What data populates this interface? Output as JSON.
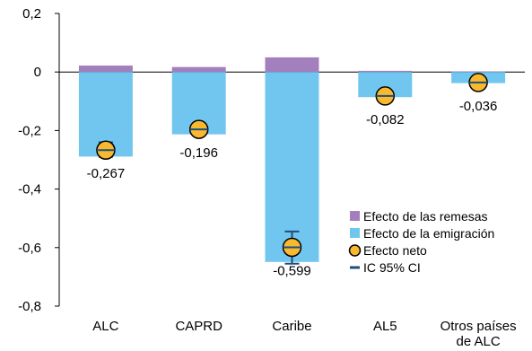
{
  "chart_data": {
    "type": "bar",
    "categories": [
      "ALC",
      "CAPRD",
      "Caribe",
      "AL5",
      "Otros países de ALC"
    ],
    "category_label_lines": [
      [
        "ALC"
      ],
      [
        "CAPRD"
      ],
      [
        "Caribe"
      ],
      [
        "AL5"
      ],
      [
        "Otros países",
        "de ALC"
      ]
    ],
    "series": [
      {
        "name": "Efecto de las remesas",
        "values": [
          0.022,
          0.017,
          0.05,
          0.004,
          0.002
        ],
        "color": "#a47fbd"
      },
      {
        "name": "Efecto de la emigración",
        "values": [
          -0.289,
          -0.213,
          -0.649,
          -0.086,
          -0.038
        ],
        "color": "#71c6f0"
      }
    ],
    "net_effect": {
      "name": "Efecto neto",
      "values": [
        -0.267,
        -0.196,
        -0.599,
        -0.082,
        -0.036
      ],
      "labels": [
        "-0,267",
        "-0,196",
        "-0,599",
        "-0,082",
        "-0,036"
      ],
      "color": "#f8b830"
    },
    "ci": {
      "name": "IC 95% CI",
      "lower": [
        -0.29,
        -0.215,
        -0.655,
        -0.093,
        -0.044
      ],
      "upper": [
        -0.24,
        -0.178,
        -0.545,
        -0.07,
        -0.028
      ],
      "color": "#1f4e79"
    },
    "ylim": [
      -0.8,
      0.2
    ],
    "yticks": [
      0.2,
      0,
      -0.2,
      -0.4,
      -0.6,
      -0.8
    ],
    "ytick_labels": [
      "0,2",
      "0",
      "-0,2",
      "-0,4",
      "-0,6",
      "-0,8"
    ],
    "grid": false,
    "legend_position": "bottom-right"
  }
}
